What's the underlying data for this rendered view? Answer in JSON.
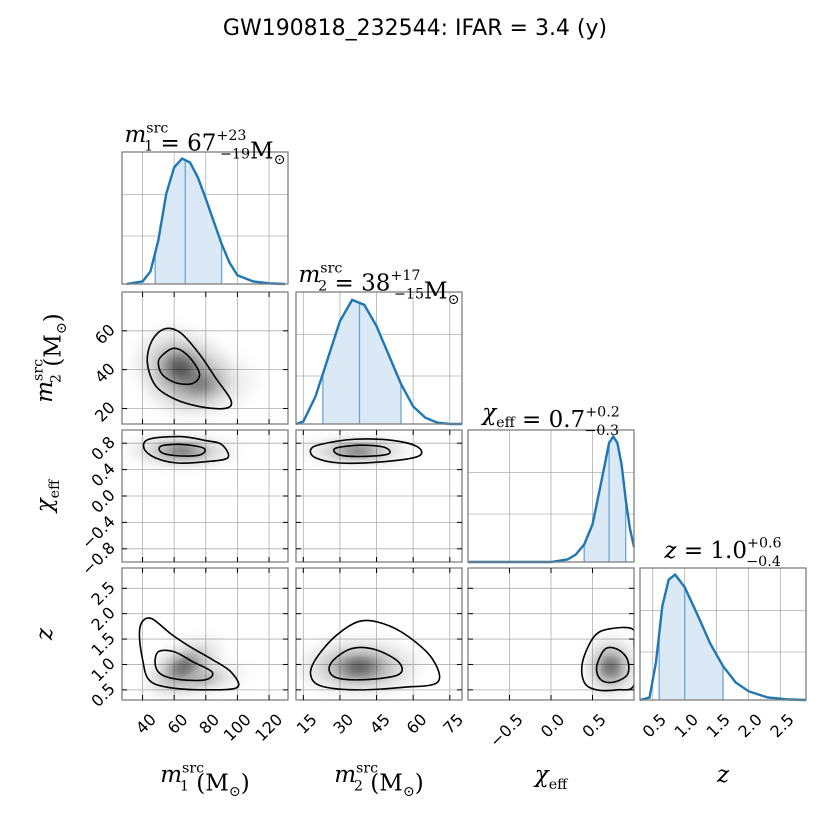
{
  "title": "GW190818_232544: IFAR = 3.4 (y)",
  "colors": {
    "accent": "#1f77b4",
    "fill": "#dbe8f5",
    "grid": "#b0b0b0",
    "frame": "#808080",
    "contour": "#000000"
  },
  "params": [
    {
      "key": "m1",
      "panel_title": {
        "sym": "m",
        "sub": "1",
        "sup": "src",
        "eq": " = 67",
        "up": "+23",
        "lo": "−19",
        "unit": "M",
        "unit_sym": "⊙"
      },
      "axis_label": {
        "sym": "m",
        "sub": "1",
        "sup": "src",
        "unit": " (M",
        "unit_sym": "⊙",
        "close": ")"
      },
      "range": [
        27,
        132
      ],
      "ticks": [
        40,
        60,
        80,
        100,
        120
      ],
      "tick_labels": [
        "40",
        "60",
        "80",
        "100",
        "120"
      ],
      "median": 67,
      "low": 48,
      "high": 90
    },
    {
      "key": "m2",
      "panel_title": {
        "sym": "m",
        "sub": "2",
        "sup": "src",
        "eq": " = 38",
        "up": "+17",
        "lo": "−15",
        "unit": "M",
        "unit_sym": "⊙"
      },
      "axis_label": {
        "sym": "m",
        "sub": "2",
        "sup": "src",
        "unit": " (M",
        "unit_sym": "⊙",
        "close": ")"
      },
      "range": [
        12,
        80
      ],
      "ticks": [
        15,
        30,
        45,
        60,
        75
      ],
      "tick_labels": [
        "15",
        "30",
        "45",
        "60",
        "75"
      ],
      "median": 38,
      "low": 23,
      "high": 55
    },
    {
      "key": "chi_eff",
      "panel_title": {
        "sym": "χ",
        "sub": "eff",
        "sup": "",
        "eq": " = 0.7",
        "up": "+0.2",
        "lo": "−0.3",
        "unit": "",
        "unit_sym": ""
      },
      "axis_label": {
        "sym": "χ",
        "sub": "eff",
        "sup": "",
        "unit": "",
        "unit_sym": "",
        "close": ""
      },
      "range": [
        -1.0,
        1.0
      ],
      "ticks": [
        -0.5,
        0.0,
        0.5
      ],
      "tick_labels": [
        "−0.5",
        "0.0",
        "0.5"
      ],
      "median": 0.7,
      "low": 0.4,
      "high": 0.9
    },
    {
      "key": "z",
      "panel_title": {
        "sym": "z",
        "sub": "",
        "sup": "",
        "eq": " = 1.0",
        "up": "+0.6",
        "lo": "−0.4",
        "unit": "",
        "unit_sym": ""
      },
      "axis_label": {
        "sym": "z",
        "sub": "",
        "sup": "",
        "unit": "",
        "unit_sym": "",
        "close": ""
      },
      "range": [
        0.3,
        2.9
      ],
      "ticks": [
        0.5,
        1.0,
        1.5,
        2.0,
        2.5
      ],
      "tick_labels": [
        "0.5",
        "1.0",
        "1.5",
        "2.0",
        "2.5"
      ],
      "median": 1.0,
      "low": 0.6,
      "high": 1.6
    }
  ],
  "y_axis_labels": [
    {
      "row": 1,
      "sym": "m",
      "sub": "2",
      "sup": "src",
      "unit": " (M",
      "unit_sym": "⊙",
      "close": ")"
    },
    {
      "row": 2,
      "sym": "χ",
      "sub": "eff",
      "sup": "",
      "unit": "",
      "unit_sym": "",
      "close": ""
    },
    {
      "row": 3,
      "sym": "z",
      "sub": "",
      "sup": "",
      "unit": "",
      "unit_sym": "",
      "close": ""
    }
  ],
  "y_ticks": {
    "m2": {
      "ticks": [
        20,
        40,
        60
      ],
      "tick_labels": [
        "20",
        "40",
        "60"
      ]
    },
    "chi_eff": {
      "ticks": [
        -0.8,
        -0.4,
        0.0,
        0.4,
        0.8
      ],
      "tick_labels": [
        "−0.8",
        "−0.4",
        "0.0",
        "0.4",
        "0.8"
      ]
    },
    "z": {
      "ticks": [
        0.5,
        1.0,
        1.5,
        2.0,
        2.5
      ],
      "tick_labels": [
        "0.5",
        "1.0",
        "1.5",
        "2.0",
        "2.5"
      ]
    }
  },
  "chart_data": {
    "type": "corner",
    "title": "GW190818_232544: IFAR = 3.4 (y)",
    "parameters": [
      "m1_src",
      "m2_src",
      "chi_eff",
      "z"
    ],
    "marginals": [
      {
        "param": "m1_src",
        "median": 67,
        "plus": 23,
        "minus": 19,
        "unit": "M☉",
        "x": [
          30,
          40,
          45,
          50,
          55,
          60,
          65,
          70,
          75,
          80,
          85,
          90,
          95,
          100,
          110,
          120,
          130
        ],
        "density": [
          0.0,
          0.02,
          0.1,
          0.35,
          0.72,
          0.93,
          1.0,
          0.97,
          0.85,
          0.68,
          0.5,
          0.32,
          0.17,
          0.07,
          0.02,
          0.005,
          0.0
        ]
      },
      {
        "param": "m2_src",
        "median": 38,
        "plus": 17,
        "minus": 15,
        "unit": "M☉",
        "x": [
          12,
          15,
          20,
          25,
          30,
          35,
          40,
          45,
          50,
          55,
          60,
          65,
          70,
          75,
          80
        ],
        "density": [
          0.0,
          0.02,
          0.22,
          0.52,
          0.82,
          0.99,
          0.95,
          0.78,
          0.55,
          0.32,
          0.14,
          0.05,
          0.01,
          0.0,
          0.0
        ]
      },
      {
        "param": "chi_eff",
        "median": 0.7,
        "plus": 0.2,
        "minus": 0.3,
        "unit": "",
        "x": [
          -1.0,
          0.0,
          0.2,
          0.3,
          0.4,
          0.5,
          0.6,
          0.7,
          0.75,
          0.8,
          0.85,
          0.9,
          0.95,
          1.0
        ],
        "density": [
          0.0,
          0.0,
          0.02,
          0.06,
          0.14,
          0.3,
          0.62,
          0.95,
          1.0,
          0.95,
          0.78,
          0.5,
          0.27,
          0.12
        ]
      },
      {
        "param": "z",
        "median": 1.0,
        "plus": 0.6,
        "minus": 0.4,
        "unit": "",
        "x": [
          0.3,
          0.45,
          0.55,
          0.65,
          0.75,
          0.85,
          1.0,
          1.2,
          1.4,
          1.6,
          1.8,
          2.0,
          2.3,
          2.6,
          2.9
        ],
        "density": [
          0.0,
          0.02,
          0.3,
          0.75,
          0.96,
          1.0,
          0.9,
          0.68,
          0.45,
          0.27,
          0.14,
          0.07,
          0.02,
          0.005,
          0.0
        ]
      }
    ],
    "joint": [
      {
        "x": "m1_src",
        "y": "m2_src",
        "row": 1,
        "col": 0,
        "blobs": [
          {
            "cx": 64,
            "cy": 41,
            "sx": 12,
            "sy": 8,
            "rot": 20,
            "a": 0.9
          },
          {
            "cx": 78,
            "cy": 32,
            "sx": 14,
            "sy": 7,
            "rot": -10,
            "a": 0.45
          }
        ],
        "outer": [
          [
            46,
            55
          ],
          [
            54,
            61
          ],
          [
            64,
            59
          ],
          [
            76,
            48
          ],
          [
            86,
            36
          ],
          [
            96,
            24
          ],
          [
            92,
            20
          ],
          [
            76,
            21
          ],
          [
            60,
            25
          ],
          [
            48,
            32
          ],
          [
            43,
            44
          ]
        ],
        "inner": [
          [
            52,
            47
          ],
          [
            60,
            51
          ],
          [
            69,
            47
          ],
          [
            76,
            38
          ],
          [
            72,
            33
          ],
          [
            62,
            33
          ],
          [
            53,
            37
          ],
          [
            50,
            43
          ]
        ]
      },
      {
        "x": "m1_src",
        "y": "chi_eff",
        "row": 2,
        "col": 0,
        "blobs": [
          {
            "cx": 65,
            "cy": 0.68,
            "sx": 14,
            "sy": 0.09,
            "rot": 0,
            "a": 0.9
          }
        ],
        "outer": [
          [
            44,
            0.86
          ],
          [
            64,
            0.9
          ],
          [
            80,
            0.84
          ],
          [
            90,
            0.78
          ],
          [
            94,
            0.58
          ],
          [
            80,
            0.52
          ],
          [
            62,
            0.5
          ],
          [
            48,
            0.58
          ],
          [
            41,
            0.72
          ]
        ],
        "inner": [
          [
            52,
            0.76
          ],
          [
            66,
            0.78
          ],
          [
            79,
            0.72
          ],
          [
            76,
            0.62
          ],
          [
            62,
            0.61
          ],
          [
            52,
            0.66
          ]
        ]
      },
      {
        "x": "m2_src",
        "y": "chi_eff",
        "row": 2,
        "col": 1,
        "blobs": [
          {
            "cx": 37,
            "cy": 0.68,
            "sx": 9,
            "sy": 0.08,
            "rot": 0,
            "a": 0.9
          }
        ],
        "outer": [
          [
            22,
            0.78
          ],
          [
            36,
            0.86
          ],
          [
            52,
            0.84
          ],
          [
            62,
            0.74
          ],
          [
            62,
            0.6
          ],
          [
            48,
            0.52
          ],
          [
            30,
            0.5
          ],
          [
            20,
            0.58
          ],
          [
            18,
            0.7
          ]
        ],
        "inner": [
          [
            28,
            0.72
          ],
          [
            38,
            0.77
          ],
          [
            48,
            0.74
          ],
          [
            50,
            0.64
          ],
          [
            40,
            0.6
          ],
          [
            30,
            0.62
          ]
        ]
      },
      {
        "x": "m1_src",
        "y": "z",
        "row": 3,
        "col": 0,
        "blobs": [
          {
            "cx": 66,
            "cy": 0.95,
            "sx": 11,
            "sy": 0.18,
            "rot": -30,
            "a": 0.9
          },
          {
            "cx": 80,
            "cy": 0.7,
            "sx": 12,
            "sy": 0.12,
            "rot": -10,
            "a": 0.4
          }
        ],
        "outer": [
          [
            40,
            1.85
          ],
          [
            46,
            1.9
          ],
          [
            58,
            1.6
          ],
          [
            70,
            1.35
          ],
          [
            84,
            1.1
          ],
          [
            96,
            0.85
          ],
          [
            100,
            0.55
          ],
          [
            80,
            0.5
          ],
          [
            56,
            0.55
          ],
          [
            44,
            0.7
          ],
          [
            40,
            1.1
          ],
          [
            38,
            1.6
          ]
        ],
        "inner": [
          [
            50,
            1.25
          ],
          [
            60,
            1.25
          ],
          [
            72,
            1.05
          ],
          [
            84,
            0.85
          ],
          [
            80,
            0.7
          ],
          [
            64,
            0.7
          ],
          [
            52,
            0.8
          ],
          [
            48,
            1.0
          ]
        ]
      },
      {
        "x": "m2_src",
        "y": "z",
        "row": 3,
        "col": 1,
        "blobs": [
          {
            "cx": 38,
            "cy": 0.95,
            "sx": 10,
            "sy": 0.22,
            "rot": 0,
            "a": 0.9
          }
        ],
        "outer": [
          [
            20,
            1.1
          ],
          [
            28,
            1.55
          ],
          [
            38,
            1.85
          ],
          [
            48,
            1.8
          ],
          [
            58,
            1.55
          ],
          [
            68,
            1.1
          ],
          [
            70,
            0.65
          ],
          [
            56,
            0.55
          ],
          [
            36,
            0.5
          ],
          [
            22,
            0.58
          ],
          [
            18,
            0.8
          ]
        ],
        "inner": [
          [
            26,
            1.0
          ],
          [
            34,
            1.3
          ],
          [
            44,
            1.3
          ],
          [
            54,
            1.05
          ],
          [
            54,
            0.8
          ],
          [
            40,
            0.7
          ],
          [
            28,
            0.75
          ]
        ]
      },
      {
        "x": "chi_eff",
        "y": "z",
        "row": 3,
        "col": 2,
        "blobs": [
          {
            "cx": 0.72,
            "cy": 0.95,
            "sx": 0.13,
            "sy": 0.24,
            "rot": 0,
            "a": 0.95
          }
        ],
        "outer": [
          [
            0.38,
            1.05
          ],
          [
            0.52,
            1.55
          ],
          [
            0.7,
            1.7
          ],
          [
            0.98,
            1.7
          ],
          [
            1.0,
            1.4
          ],
          [
            1.0,
            0.6
          ],
          [
            0.8,
            0.5
          ],
          [
            0.55,
            0.5
          ],
          [
            0.4,
            0.65
          ]
        ],
        "inner": [
          [
            0.55,
            0.95
          ],
          [
            0.65,
            1.3
          ],
          [
            0.8,
            1.3
          ],
          [
            0.92,
            1.1
          ],
          [
            0.92,
            0.8
          ],
          [
            0.75,
            0.65
          ],
          [
            0.6,
            0.7
          ]
        ]
      }
    ]
  }
}
